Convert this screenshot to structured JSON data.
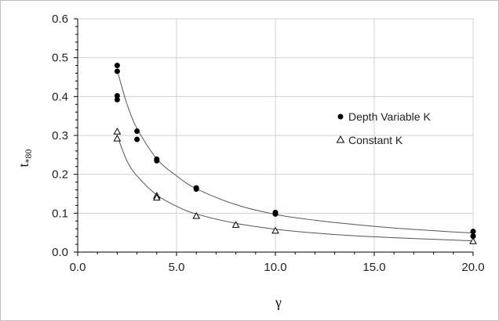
{
  "chart_data": {
    "type": "scatter",
    "title": "",
    "xlabel": "γ",
    "ylabel_main": "t",
    "ylabel_sub": "*80",
    "xlim": [
      0,
      20
    ],
    "ylim": [
      0,
      0.6
    ],
    "x_ticks": [
      "0.0",
      "5.0",
      "10.0",
      "15.0",
      "20.0"
    ],
    "x_tick_values": [
      0,
      5,
      10,
      15,
      20
    ],
    "y_ticks": [
      "0.0",
      "0.1",
      "0.2",
      "0.3",
      "0.4",
      "0.5",
      "0.6"
    ],
    "y_tick_values": [
      0,
      0.1,
      0.2,
      0.3,
      0.4,
      0.5,
      0.6
    ],
    "grid": true,
    "legend_position": "right",
    "series": [
      {
        "name": "Depth Variable K",
        "marker": "filled-circle",
        "color": "#000000",
        "points": [
          [
            2,
            0.48
          ],
          [
            2,
            0.465
          ],
          [
            2,
            0.402
          ],
          [
            2,
            0.392
          ],
          [
            3,
            0.311
          ],
          [
            3,
            0.29
          ],
          [
            4,
            0.239
          ],
          [
            4,
            0.235
          ],
          [
            6,
            0.165
          ],
          [
            6,
            0.162
          ],
          [
            10,
            0.102
          ],
          [
            10,
            0.098
          ],
          [
            20,
            0.053
          ],
          [
            20,
            0.041
          ]
        ],
        "trendline": [
          [
            2.05,
            0.458
          ],
          [
            2.5,
            0.38
          ],
          [
            3,
            0.318
          ],
          [
            4,
            0.24
          ],
          [
            5,
            0.196
          ],
          [
            6,
            0.163
          ],
          [
            8,
            0.122
          ],
          [
            10,
            0.097
          ],
          [
            12,
            0.082
          ],
          [
            14,
            0.071
          ],
          [
            16,
            0.062
          ],
          [
            18,
            0.055
          ],
          [
            20,
            0.049
          ]
        ]
      },
      {
        "name": "Constant K",
        "marker": "open-triangle",
        "color": "#000000",
        "points": [
          [
            2,
            0.31
          ],
          [
            2,
            0.292
          ],
          [
            4,
            0.145
          ],
          [
            4,
            0.14
          ],
          [
            6,
            0.093
          ],
          [
            8,
            0.07
          ],
          [
            10,
            0.055
          ],
          [
            20,
            0.028
          ]
        ],
        "trendline": [
          [
            2.05,
            0.292
          ],
          [
            2.5,
            0.234
          ],
          [
            3,
            0.196
          ],
          [
            4,
            0.147
          ],
          [
            5,
            0.118
          ],
          [
            6,
            0.098
          ],
          [
            8,
            0.074
          ],
          [
            10,
            0.059
          ],
          [
            12,
            0.049
          ],
          [
            14,
            0.042
          ],
          [
            16,
            0.037
          ],
          [
            18,
            0.033
          ],
          [
            20,
            0.029
          ]
        ]
      }
    ]
  }
}
